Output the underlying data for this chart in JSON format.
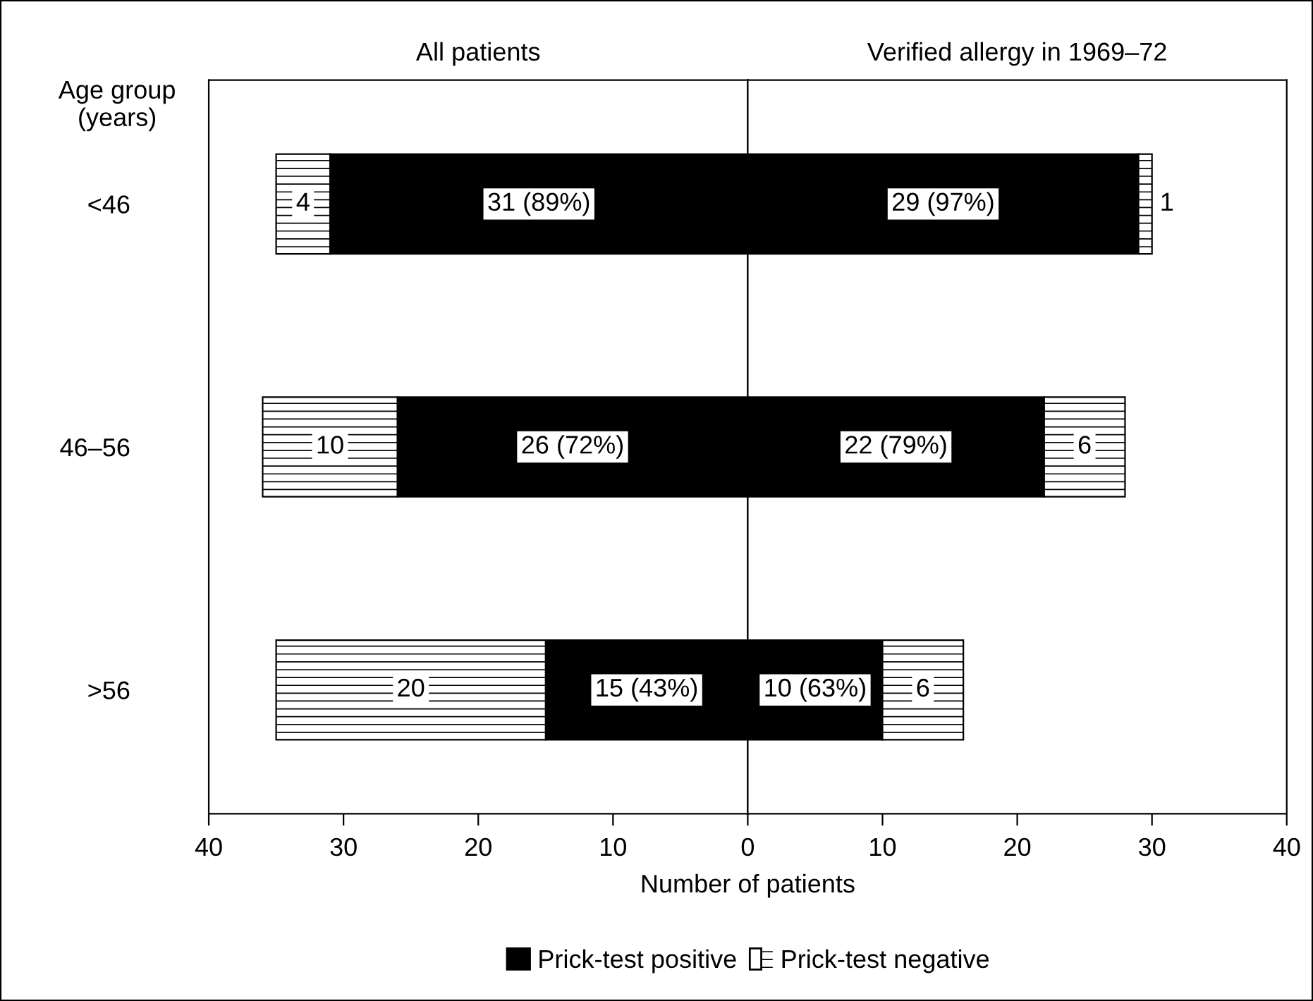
{
  "chart_data": [
    {
      "type": "bar",
      "orientation": "horizontal",
      "stacked": true,
      "title": "All patients",
      "ylabel": "Age group\n(years)",
      "xlabel": "Number of patients",
      "categories": [
        "<46",
        "46–56",
        ">56"
      ],
      "series": [
        {
          "name": "Prick-test positive",
          "color": "#000000",
          "values": [
            31,
            26,
            15
          ],
          "value_labels": [
            "31 (89%)",
            "26 (72%)",
            "15 (43%)"
          ]
        },
        {
          "name": "Prick-test negative",
          "color": "#ffffff",
          "values": [
            4,
            10,
            20
          ],
          "value_labels": [
            "4",
            "10",
            "20"
          ]
        }
      ],
      "xlim": [
        40,
        0
      ],
      "xticks": [
        40,
        30,
        20,
        10
      ],
      "grid": false,
      "legend": "bottom"
    },
    {
      "type": "bar",
      "orientation": "horizontal",
      "stacked": true,
      "title": "Verified allergy in 1969–72",
      "series": [
        {
          "color": "#000000",
          "values": [
            29,
            22,
            10
          ],
          "value_labels": [
            "29 (97%)",
            "22 (79%)",
            "10 (63%)"
          ]
        },
        {
          "color": "#ffffff",
          "values": [
            1,
            6,
            6
          ],
          "value_labels": [
            "1",
            "6",
            "6"
          ]
        }
      ],
      "xlim": [
        0,
        40
      ],
      "xticks": [
        0,
        10,
        20,
        30,
        40
      ],
      "grid": false,
      "tick_labels": "x"
    }
  ]
}
